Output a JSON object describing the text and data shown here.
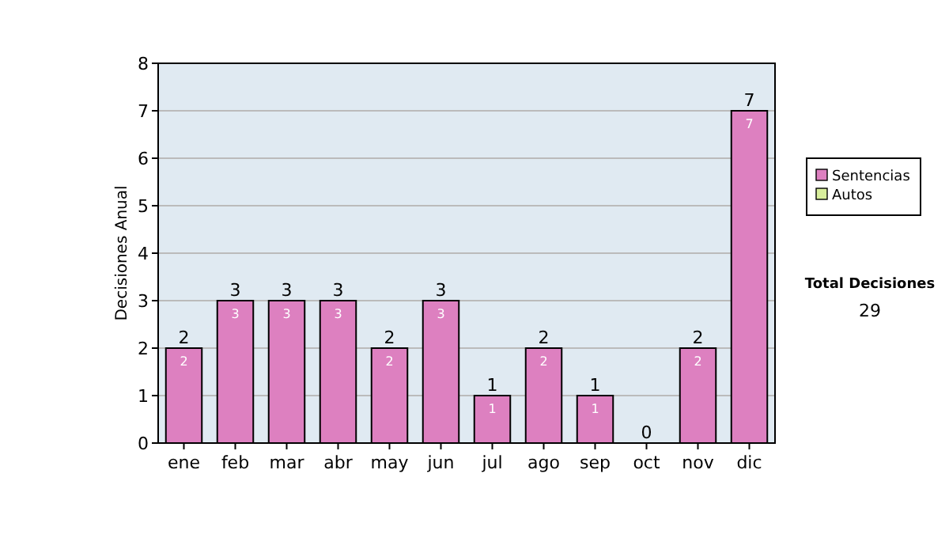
{
  "chart_data": {
    "type": "bar",
    "stacked": true,
    "ylabel": "Decisiones Anual",
    "categories": [
      "ene",
      "feb",
      "mar",
      "abr",
      "may",
      "jun",
      "jul",
      "ago",
      "sep",
      "oct",
      "nov",
      "dic"
    ],
    "series": [
      {
        "name": "Sentencias",
        "color": "#dd80c0",
        "values": [
          2,
          3,
          3,
          3,
          2,
          3,
          1,
          2,
          1,
          0,
          2,
          7
        ],
        "value_labels": [
          "2",
          "3",
          "3",
          "3",
          "2",
          "3",
          "1",
          "2",
          "1",
          null,
          "2",
          "7"
        ]
      },
      {
        "name": "Autos",
        "color": "#d8ee9c",
        "values": [
          0,
          0,
          0,
          0,
          0,
          0,
          0,
          0,
          0,
          0,
          0,
          0
        ]
      }
    ],
    "totals": [
      "2",
      "3",
      "3",
      "3",
      "2",
      "3",
      "1",
      "2",
      "1",
      "0",
      "2",
      "7"
    ],
    "ylim": [
      0,
      8
    ],
    "yticks": [
      0,
      1,
      2,
      3,
      4,
      5,
      6,
      7,
      8
    ],
    "grid": "y",
    "legend": "right",
    "annotations": [
      "Total Decisiones",
      "29"
    ]
  }
}
